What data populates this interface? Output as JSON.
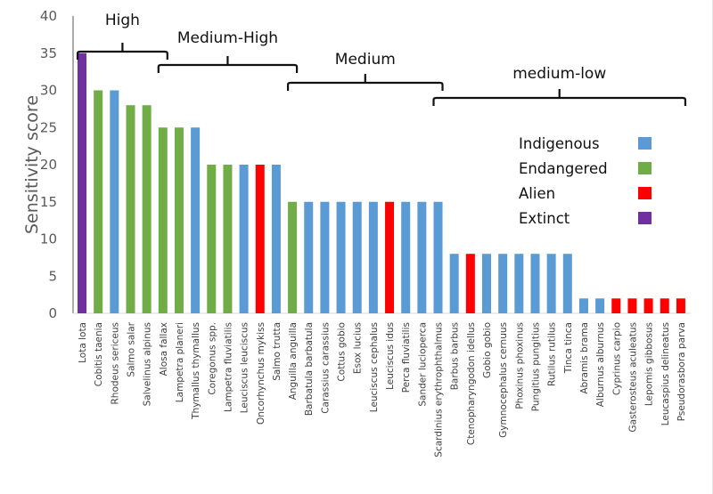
{
  "chart_data": {
    "type": "bar",
    "title": "",
    "xlabel": "",
    "ylabel": "Sensitivity score",
    "ylim": [
      0,
      40
    ],
    "yticks": [
      0,
      5,
      10,
      15,
      20,
      25,
      30,
      35,
      40
    ],
    "grid": false,
    "legend_position": "right-middle",
    "colors": {
      "Indigenous": "#5b9bd5",
      "Endangered": "#70ad47",
      "Alien": "#ff0000",
      "Extinct": "#7030a0"
    },
    "legend": [
      {
        "label": "Indigenous",
        "status": "Indigenous"
      },
      {
        "label": "Endangered",
        "status": "Endangered"
      },
      {
        "label": "Alien",
        "status": "Alien"
      },
      {
        "label": "Extinct",
        "status": "Extinct"
      }
    ],
    "categories": [
      "Lota lota",
      "Cobitis taenia",
      "Rhodeus sericeus",
      "Salmo salar",
      "Salvelinus alpinus",
      "Alosa fallax",
      "Lampetra planeri",
      "Thymallus thymallus",
      "Coregonus  spp.",
      "Lampetra fluviatilis",
      "Leuciscus leuciscus",
      "Oncorhynchus mykiss",
      "Salmo trutta",
      "Anguilla anguilla",
      "Barbatula barbatula",
      "Carassius carassius",
      "Cottus gobio",
      "Esox lucius",
      "Leuciscus cephalus",
      "Leuciscus idus",
      "Perca fluviatilis",
      "Sander lucioperca",
      "Scardinius erythrophthalmus",
      "Barbus barbus",
      "Ctenopharyngodon idellus",
      "Gobio gobio",
      "Gymnocephalus cernuus",
      "Phoxinus phoxinus",
      "Pungitius pungitius",
      "Rutilus rutilus",
      "Tinca tinca",
      "Abramis brama",
      "Alburnus alburnus",
      "Cyprinus carpio",
      "Gasterosteus aculeatus",
      "Lepomis gibbosus",
      "Leucaspius delineatus",
      "Pseudorasbora parva"
    ],
    "values": [
      35,
      30,
      30,
      28,
      28,
      25,
      25,
      25,
      20,
      20,
      20,
      20,
      20,
      15,
      15,
      15,
      15,
      15,
      15,
      15,
      15,
      15,
      15,
      8,
      8,
      8,
      8,
      8,
      8,
      8,
      8,
      2,
      2,
      2,
      2,
      2,
      2,
      2
    ],
    "status": [
      "Extinct",
      "Endangered",
      "Indigenous",
      "Endangered",
      "Endangered",
      "Endangered",
      "Endangered",
      "Indigenous",
      "Endangered",
      "Endangered",
      "Indigenous",
      "Alien",
      "Indigenous",
      "Endangered",
      "Indigenous",
      "Indigenous",
      "Indigenous",
      "Indigenous",
      "Indigenous",
      "Alien",
      "Indigenous",
      "Indigenous",
      "Indigenous",
      "Indigenous",
      "Alien",
      "Indigenous",
      "Indigenous",
      "Indigenous",
      "Indigenous",
      "Indigenous",
      "Indigenous",
      "Indigenous",
      "Indigenous",
      "Alien",
      "Alien",
      "Alien",
      "Alien",
      "Alien"
    ],
    "annotations": [
      {
        "label": "High",
        "from_index": 0,
        "to_index": 5
      },
      {
        "label": "Medium-High",
        "from_index": 5,
        "to_index": 13
      },
      {
        "label": "Medium",
        "from_index": 13,
        "to_index": 22
      },
      {
        "label": "medium-low",
        "from_index": 22,
        "to_index": 37
      }
    ]
  }
}
